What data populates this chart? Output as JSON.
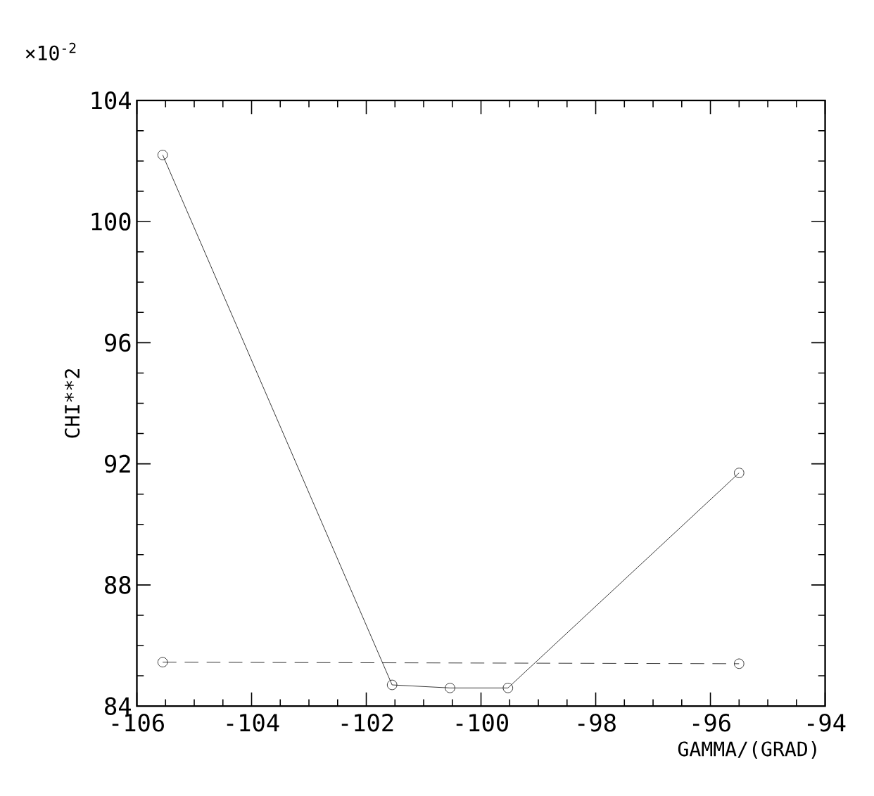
{
  "chart_data": {
    "type": "line",
    "xlabel": "GAMMA/(GRAD)",
    "ylabel": "CHI**2",
    "annotations": [
      "×10$^{-2}$"
    ],
    "xlim": [
      -106,
      -94
    ],
    "xticks": [
      -106,
      -104,
      -102,
      -100,
      -98,
      -96,
      -94
    ],
    "ylim": [
      84,
      104
    ],
    "yticks": [
      84,
      88,
      92,
      96,
      100,
      104
    ],
    "marker": "circle",
    "series": [
      {
        "color": "#000000",
        "line_style": "solid",
        "x": [
          -105.55,
          -101.55,
          -100.54,
          -99.53,
          -95.5
        ],
        "values": [
          102.2,
          84.7,
          84.6,
          84.6,
          91.7
        ]
      },
      {
        "color": "#000000",
        "line_style": "dashed",
        "x": [
          -105.55,
          -95.5
        ],
        "values": [
          85.45,
          85.4
        ]
      }
    ]
  }
}
